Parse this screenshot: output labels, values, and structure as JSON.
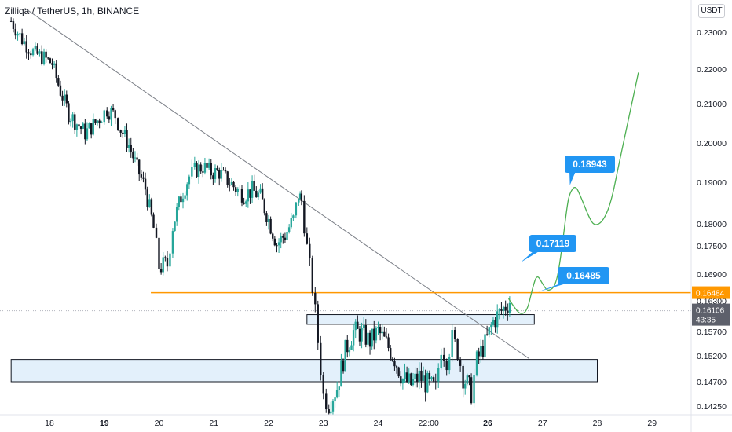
{
  "header": {
    "title": "Zilliqa / TetherUS, 1h, BINANCE",
    "currency_button": "USDT"
  },
  "chart_data": {
    "type": "candlestick",
    "symbol": "Zilliqa / TetherUS",
    "interval": "1h",
    "exchange": "BINANCE",
    "ylim": [
      0.1415,
      0.2365
    ],
    "xlim": [
      17.3,
      29.2
    ],
    "y_ticks": [
      "0.23000",
      "0.22000",
      "0.21000",
      "0.20000",
      "0.19000",
      "0.18000",
      "0.17500",
      "0.16900",
      "0.16300",
      "0.15700",
      "0.15200",
      "0.14700",
      "0.14250"
    ],
    "x_ticks": [
      {
        "label": "18",
        "x": 18
      },
      {
        "label": "19",
        "x": 19,
        "bold": true
      },
      {
        "label": "20",
        "x": 20
      },
      {
        "label": "21",
        "x": 21
      },
      {
        "label": "22",
        "x": 22
      },
      {
        "label": "23",
        "x": 23
      },
      {
        "label": "24",
        "x": 24
      },
      {
        "label": "22:00",
        "x": 24.92
      },
      {
        "label": "26",
        "x": 26,
        "bold": true
      },
      {
        "label": "27",
        "x": 27
      },
      {
        "label": "28",
        "x": 28
      },
      {
        "label": "29",
        "x": 29
      }
    ],
    "up_color": "#26a69a",
    "down_color": "#131722",
    "candles_close": [
      [
        17.3,
        0.233
      ],
      [
        17.5,
        0.228
      ],
      [
        17.7,
        0.2245
      ],
      [
        17.9,
        0.223
      ],
      [
        18.05,
        0.2215
      ],
      [
        18.2,
        0.2135
      ],
      [
        18.35,
        0.2075
      ],
      [
        18.5,
        0.205
      ],
      [
        18.65,
        0.2025
      ],
      [
        18.8,
        0.2045
      ],
      [
        18.95,
        0.207
      ],
      [
        19.05,
        0.2085
      ],
      [
        19.2,
        0.207
      ],
      [
        19.3,
        0.2035
      ],
      [
        19.45,
        0.1995
      ],
      [
        19.6,
        0.1935
      ],
      [
        19.75,
        0.1885
      ],
      [
        19.9,
        0.179
      ],
      [
        20.0,
        0.1705
      ],
      [
        20.15,
        0.171
      ],
      [
        20.25,
        0.1795
      ],
      [
        20.4,
        0.1865
      ],
      [
        20.55,
        0.1915
      ],
      [
        20.65,
        0.193
      ],
      [
        20.8,
        0.194
      ],
      [
        20.95,
        0.1925
      ],
      [
        21.1,
        0.1925
      ],
      [
        21.25,
        0.1905
      ],
      [
        21.4,
        0.1885
      ],
      [
        21.55,
        0.187
      ],
      [
        21.7,
        0.188
      ],
      [
        21.85,
        0.1865
      ],
      [
        22.0,
        0.181
      ],
      [
        22.15,
        0.1755
      ],
      [
        22.3,
        0.1775
      ],
      [
        22.45,
        0.181
      ],
      [
        22.55,
        0.187
      ],
      [
        22.6,
        0.1855
      ],
      [
        22.7,
        0.1745
      ],
      [
        22.8,
        0.166
      ],
      [
        22.9,
        0.155
      ],
      [
        23.0,
        0.1445
      ],
      [
        23.1,
        0.143
      ],
      [
        23.25,
        0.146
      ],
      [
        23.4,
        0.153
      ],
      [
        23.55,
        0.157
      ],
      [
        23.7,
        0.1565
      ],
      [
        23.85,
        0.155
      ],
      [
        24.0,
        0.157
      ],
      [
        24.15,
        0.1545
      ],
      [
        24.3,
        0.1515
      ],
      [
        24.45,
        0.1475
      ],
      [
        24.6,
        0.1465
      ],
      [
        24.75,
        0.148
      ],
      [
        24.9,
        0.1465
      ],
      [
        25.05,
        0.1455
      ],
      [
        25.15,
        0.154
      ],
      [
        25.25,
        0.1515
      ],
      [
        25.35,
        0.1555
      ],
      [
        25.45,
        0.153
      ],
      [
        25.55,
        0.148
      ],
      [
        25.7,
        0.145
      ],
      [
        25.8,
        0.151
      ],
      [
        25.95,
        0.1545
      ],
      [
        26.1,
        0.159
      ],
      [
        26.25,
        0.161
      ],
      [
        26.4,
        0.163
      ],
      [
        26.5,
        0.1611
      ]
    ],
    "last_price": "0.16106",
    "countdown": "43:35",
    "support_level": {
      "price": 0.16484,
      "label": "0.16484",
      "color": "#ff9800",
      "x_from": 19.85
    },
    "trendline": [
      {
        "x": 17.55,
        "y": 0.2365
      },
      {
        "x": 26.75,
        "y": 0.1515
      }
    ],
    "zones": [
      {
        "x1": 22.7,
        "x2": 26.85,
        "y1": 0.1603,
        "y2": 0.1584
      },
      {
        "x1": 17.3,
        "x2": 28.0,
        "y1": 0.1513,
        "y2": 0.147
      }
    ],
    "projection_path": [
      [
        26.38,
        0.1635
      ],
      [
        26.5,
        0.1615
      ],
      [
        26.6,
        0.1603
      ],
      [
        26.72,
        0.161
      ],
      [
        26.82,
        0.166
      ],
      [
        26.9,
        0.169
      ],
      [
        27.0,
        0.1668
      ],
      [
        27.1,
        0.165
      ],
      [
        27.25,
        0.1665
      ],
      [
        27.35,
        0.174
      ],
      [
        27.45,
        0.1845
      ],
      [
        27.5,
        0.1875
      ],
      [
        27.6,
        0.1893
      ],
      [
        27.7,
        0.1865
      ],
      [
        27.85,
        0.1815
      ],
      [
        27.95,
        0.1795
      ],
      [
        28.1,
        0.1805
      ],
      [
        28.25,
        0.185
      ],
      [
        28.4,
        0.195
      ],
      [
        28.6,
        0.208
      ],
      [
        28.75,
        0.219
      ]
    ],
    "projection_color": "#4caf50",
    "callouts": [
      {
        "label": "0.16485",
        "x": 26.92,
        "y": 0.165
      },
      {
        "label": "0.17119",
        "x": 26.6,
        "y": 0.1715
      },
      {
        "label": "0.18943",
        "x": 27.5,
        "y": 0.1893
      }
    ],
    "grid": false,
    "legend": "none"
  }
}
